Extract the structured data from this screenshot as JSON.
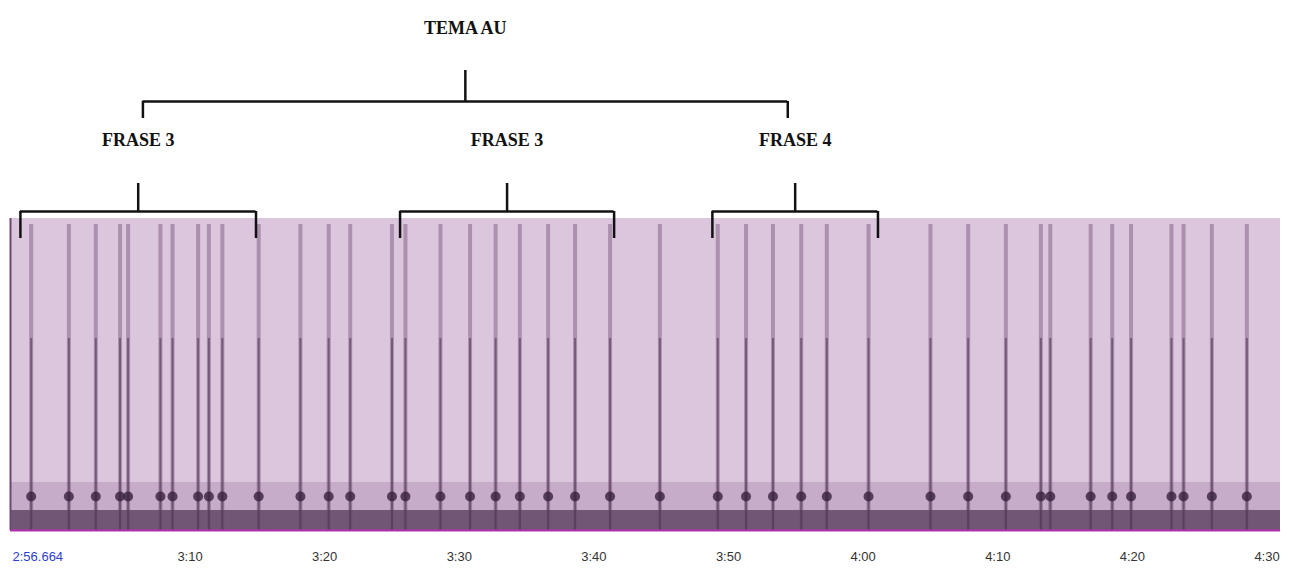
{
  "chart_data": {
    "type": "spectrogram",
    "tick_labels": "x",
    "xlim": [
      176.664,
      271
    ],
    "xticks": [
      {
        "value": 176.664,
        "label": "2:56.664"
      },
      {
        "value": 190,
        "label": "3:10"
      },
      {
        "value": 200,
        "label": "3:20"
      },
      {
        "value": 210,
        "label": "3:30"
      },
      {
        "value": 220,
        "label": "3:40"
      },
      {
        "value": 230,
        "label": "3:50"
      },
      {
        "value": 240,
        "label": "4:00"
      },
      {
        "value": 250,
        "label": "4:10"
      },
      {
        "value": 260,
        "label": "4:20"
      },
      {
        "value": 270,
        "label": "4:30"
      }
    ],
    "units": [
      178.2,
      181.0,
      183.0,
      184.8,
      185.4,
      187.8,
      188.7,
      190.6,
      191.4,
      192.4,
      195.1,
      198.2,
      200.3,
      201.9,
      205.0,
      206.0,
      208.6,
      210.8,
      212.7,
      214.5,
      216.6,
      218.6,
      221.2,
      224.9,
      229.2,
      231.3,
      233.3,
      235.4,
      237.3,
      240.4,
      245.0,
      247.8,
      250.6,
      253.2,
      253.9,
      256.9,
      258.5,
      259.9,
      262.9,
      263.8,
      265.9,
      268.5
    ],
    "theme": {
      "label": "TEMA AU",
      "start": 186.5,
      "end": 234.4
    },
    "phrases": [
      {
        "label": "FRASE 3",
        "start": 177.4,
        "end": 194.9
      },
      {
        "label": "FRASE 3",
        "start": 205.6,
        "end": 221.5
      },
      {
        "label": "FRASE 4",
        "start": 228.8,
        "end": 241.1
      }
    ]
  }
}
